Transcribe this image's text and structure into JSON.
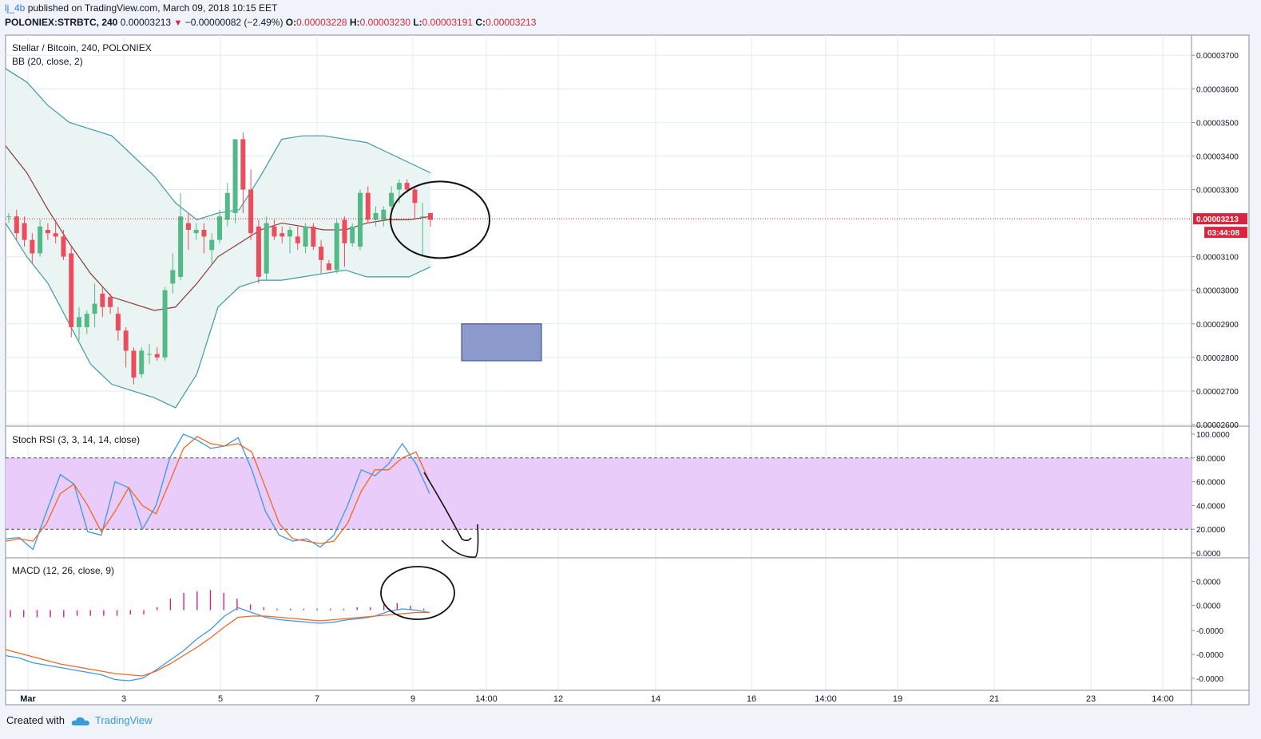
{
  "header": {
    "user": "lj_4b",
    "published": "published on TradingView.com, March 09, 2018 10:15 EET",
    "symbol": "POLONIEX:STRBTC, 240",
    "last": "0.00003213",
    "change": "−0.00000082 (−2.49%)",
    "o_label": "O:",
    "o": "0.00003228",
    "h_label": "H:",
    "h": "0.00003230",
    "l_label": "L:",
    "l": "0.00003191",
    "c_label": "C:",
    "c": "0.00003213"
  },
  "footer": {
    "created_with": "Created with",
    "brand": "TradingView"
  },
  "chart_data": [
    {
      "type": "candlestick",
      "title": "Stellar / Bitcoin, 240, POLONIEX",
      "indicator_label": "BB (20, close, 2)",
      "yticks": [
        "0.00003700",
        "0.00003600",
        "0.00003500",
        "0.00003400",
        "0.00003300",
        "0.00003100",
        "0.00003000",
        "0.00002900",
        "0.00002800",
        "0.00002700",
        "0.00002600"
      ],
      "price_label": "0.00003213",
      "countdown_label": "03:44:08",
      "last_price": 3.213e-05,
      "ylim": [
        2.6e-05,
        3.76e-05
      ],
      "candles": [
        [
          3.22e-05,
          3.23e-05,
          3.2e-05,
          3.22e-05
        ],
        [
          3.22e-05,
          3.24e-05,
          3.15e-05,
          3.17e-05
        ],
        [
          3.2e-05,
          3.22e-05,
          3.13e-05,
          3.15e-05
        ],
        [
          3.15e-05,
          3.17e-05,
          3.08e-05,
          3.11e-05
        ],
        [
          3.11e-05,
          3.21e-05,
          3.1e-05,
          3.19e-05
        ],
        [
          3.18e-05,
          3.2e-05,
          3.15e-05,
          3.17e-05
        ],
        [
          3.17e-05,
          3.21e-05,
          3.14e-05,
          3.16e-05
        ],
        [
          3.16e-05,
          3.18e-05,
          3.09e-05,
          3.1e-05
        ],
        [
          3.11e-05,
          3.13e-05,
          2.86e-05,
          2.89e-05
        ],
        [
          2.89e-05,
          2.95e-05,
          2.85e-05,
          2.92e-05
        ],
        [
          2.89e-05,
          2.94e-05,
          2.87e-05,
          2.93e-05
        ],
        [
          2.93e-05,
          3.02e-05,
          2.89e-05,
          2.96e-05
        ],
        [
          2.99e-05,
          3.01e-05,
          2.92e-05,
          2.95e-05
        ],
        [
          2.98e-05,
          2.99e-05,
          2.93e-05,
          2.95e-05
        ],
        [
          2.93e-05,
          2.95e-05,
          2.85e-05,
          2.88e-05
        ],
        [
          2.88e-05,
          2.89e-05,
          2.77e-05,
          2.82e-05
        ],
        [
          2.82e-05,
          2.83e-05,
          2.72e-05,
          2.74e-05
        ],
        [
          2.75e-05,
          2.83e-05,
          2.74e-05,
          2.82e-05
        ],
        [
          2.81e-05,
          2.84e-05,
          2.78e-05,
          2.81e-05
        ],
        [
          2.81e-05,
          2.83e-05,
          2.79e-05,
          2.8e-05
        ],
        [
          2.8e-05,
          3.01e-05,
          2.79e-05,
          3e-05
        ],
        [
          3.02e-05,
          3.11e-05,
          2.99e-05,
          3.06e-05
        ],
        [
          3.04e-05,
          3.29e-05,
          3.03e-05,
          3.22e-05
        ],
        [
          3.2e-05,
          3.23e-05,
          3.12e-05,
          3.18e-05
        ],
        [
          3.17e-05,
          3.2e-05,
          3.15e-05,
          3.18e-05
        ],
        [
          3.18e-05,
          3.2e-05,
          3.11e-05,
          3.16e-05
        ],
        [
          3.12e-05,
          3.17e-05,
          3.08e-05,
          3.15e-05
        ],
        [
          3.15e-05,
          3.24e-05,
          3.14e-05,
          3.22e-05
        ],
        [
          3.21e-05,
          3.32e-05,
          3.19e-05,
          3.29e-05
        ],
        [
          3.23e-05,
          3.45e-05,
          3.2e-05,
          3.45e-05
        ],
        [
          3.45e-05,
          3.47e-05,
          3.23e-05,
          3.3e-05
        ],
        [
          3.3e-05,
          3.36e-05,
          3.15e-05,
          3.17e-05
        ],
        [
          3.19e-05,
          3.21e-05,
          3.02e-05,
          3.04e-05
        ],
        [
          3.05e-05,
          3.22e-05,
          3.03e-05,
          3.2e-05
        ],
        [
          3.19e-05,
          3.21e-05,
          3.15e-05,
          3.16e-05
        ],
        [
          3.17e-05,
          3.19e-05,
          3.14e-05,
          3.16e-05
        ],
        [
          3.16e-05,
          3.19e-05,
          3.11e-05,
          3.18e-05
        ],
        [
          3.16e-05,
          3.19e-05,
          3.12e-05,
          3.14e-05
        ],
        [
          3.13e-05,
          3.2e-05,
          3.11e-05,
          3.19e-05
        ],
        [
          3.19e-05,
          3.2e-05,
          3.12e-05,
          3.13e-05
        ],
        [
          3.13e-05,
          3.15e-05,
          3.05e-05,
          3.09e-05
        ],
        [
          3.08e-05,
          3.09e-05,
          3.06e-05,
          3.06e-05
        ],
        [
          3.06e-05,
          3.21e-05,
          3.05e-05,
          3.2e-05
        ],
        [
          3.21e-05,
          3.22e-05,
          3.07e-05,
          3.14e-05
        ],
        [
          3.14e-05,
          3.2e-05,
          3.13e-05,
          3.19e-05
        ],
        [
          3.13e-05,
          3.3e-05,
          3.12e-05,
          3.29e-05
        ],
        [
          3.29e-05,
          3.31e-05,
          3.2e-05,
          3.21e-05
        ],
        [
          3.21e-05,
          3.25e-05,
          3.19e-05,
          3.23e-05
        ],
        [
          3.21e-05,
          3.25e-05,
          3.19e-05,
          3.24e-05
        ],
        [
          3.25e-05,
          3.31e-05,
          3.23e-05,
          3.29e-05
        ],
        [
          3.3e-05,
          3.33e-05,
          3.26e-05,
          3.32e-05
        ],
        [
          3.32e-05,
          3.33e-05,
          3.29e-05,
          3.3e-05
        ],
        [
          3.3e-05,
          3.31e-05,
          3.21e-05,
          3.26e-05
        ],
        [
          3.22e-05,
          3.26e-05,
          3.1e-05,
          3.22e-05
        ],
        [
          3.23e-05,
          3.23e-05,
          3.19e-05,
          3.21e-05
        ]
      ],
      "bb_upper": [
        3.66e-05,
        3.62e-05,
        3.55e-05,
        3.5e-05,
        3.48e-05,
        3.46e-05,
        3.4e-05,
        3.34e-05,
        3.26e-05,
        3.21e-05,
        3.23e-05,
        3.24e-05,
        3.34e-05,
        3.45e-05,
        3.46e-05,
        3.46e-05,
        3.45e-05,
        3.44e-05,
        3.41e-05,
        3.38e-05,
        3.35e-05
      ],
      "bb_middle": [
        3.43e-05,
        3.35e-05,
        3.24e-05,
        3.14e-05,
        3.05e-05,
        2.98e-05,
        2.96e-05,
        2.94e-05,
        2.95e-05,
        3.02e-05,
        3.1e-05,
        3.14e-05,
        3.18e-05,
        3.2e-05,
        3.19e-05,
        3.18e-05,
        3.18e-05,
        3.2e-05,
        3.21e-05,
        3.21e-05,
        3.22e-05
      ],
      "bb_lower": [
        3.2e-05,
        3.1e-05,
        3.02e-05,
        2.9e-05,
        2.78e-05,
        2.72e-05,
        2.7e-05,
        2.68e-05,
        2.65e-05,
        2.75e-05,
        2.95e-05,
        3.01e-05,
        3.03e-05,
        3.03e-05,
        3.04e-05,
        3.05e-05,
        3.06e-05,
        3.04e-05,
        3.04e-05,
        3.04e-05,
        3.07e-05
      ]
    },
    {
      "type": "line",
      "title": "Stoch RSI (3, 3, 14, 14, close)",
      "yticks": [
        "100.0000",
        "80.0000",
        "60.0000",
        "40.0000",
        "20.0000",
        "0.0000"
      ],
      "ylim": [
        0,
        100
      ],
      "band": [
        20,
        80
      ],
      "series": [
        {
          "name": "K",
          "values": [
            12,
            13,
            3,
            35,
            66,
            58,
            18,
            15,
            60,
            55,
            20,
            40,
            80,
            100,
            95,
            88,
            90,
            97,
            70,
            35,
            15,
            10,
            12,
            5,
            15,
            40,
            70,
            65,
            75,
            92,
            75,
            50
          ]
        },
        {
          "name": "D",
          "values": [
            10,
            12,
            10,
            25,
            50,
            58,
            40,
            18,
            35,
            55,
            40,
            33,
            60,
            88,
            98,
            92,
            90,
            92,
            85,
            55,
            25,
            12,
            10,
            8,
            10,
            25,
            52,
            70,
            70,
            80,
            85,
            60
          ]
        }
      ]
    },
    {
      "type": "line",
      "title": "MACD (12, 26, close, 9)",
      "yticks": [
        "0.0000",
        "0.0000",
        "-0.0000",
        "-0.0000",
        "-0.0000"
      ],
      "series": [
        {
          "name": "MACD",
          "values": [
            -3.0,
            -3.2,
            -3.6,
            -3.8,
            -4.0,
            -4.2,
            -4.4,
            -4.6,
            -5.0,
            -5.1,
            -4.9,
            -4.2,
            -3.4,
            -2.6,
            -1.6,
            -0.8,
            0.3,
            1.0,
            0.6,
            0.2,
            0.0,
            -0.1,
            -0.2,
            -0.3,
            -0.2,
            0.0,
            0.1,
            0.3,
            0.7,
            0.9,
            0.8,
            0.6
          ]
        },
        {
          "name": "Signal",
          "values": [
            -2.5,
            -2.8,
            -3.1,
            -3.4,
            -3.7,
            -3.9,
            -4.1,
            -4.3,
            -4.5,
            -4.6,
            -4.7,
            -4.3,
            -3.7,
            -3.0,
            -2.3,
            -1.5,
            -0.6,
            0.2,
            0.3,
            0.3,
            0.2,
            0.1,
            0.0,
            -0.1,
            0.0,
            0.1,
            0.2,
            0.3,
            0.4,
            0.5,
            0.6,
            0.6
          ]
        },
        {
          "name": "Histogram",
          "values": [
            -0.5,
            -0.5,
            -0.5,
            -0.5,
            -0.5,
            -0.4,
            -0.4,
            -0.4,
            -0.4,
            -0.3,
            -0.3,
            0.2,
            0.8,
            1.2,
            1.3,
            1.4,
            1.2,
            0.8,
            0.4,
            0.2,
            0.1,
            0.1,
            0.1,
            0.1,
            0.1,
            0.1,
            0.2,
            0.2,
            0.4,
            0.5,
            0.3,
            0.1
          ]
        }
      ]
    }
  ],
  "xaxis_labels": [
    "Mar",
    "3",
    "5",
    "7",
    "9",
    "14:00",
    "12",
    "14",
    "16",
    "14:00",
    "19",
    "21",
    "23",
    "14:00"
  ]
}
